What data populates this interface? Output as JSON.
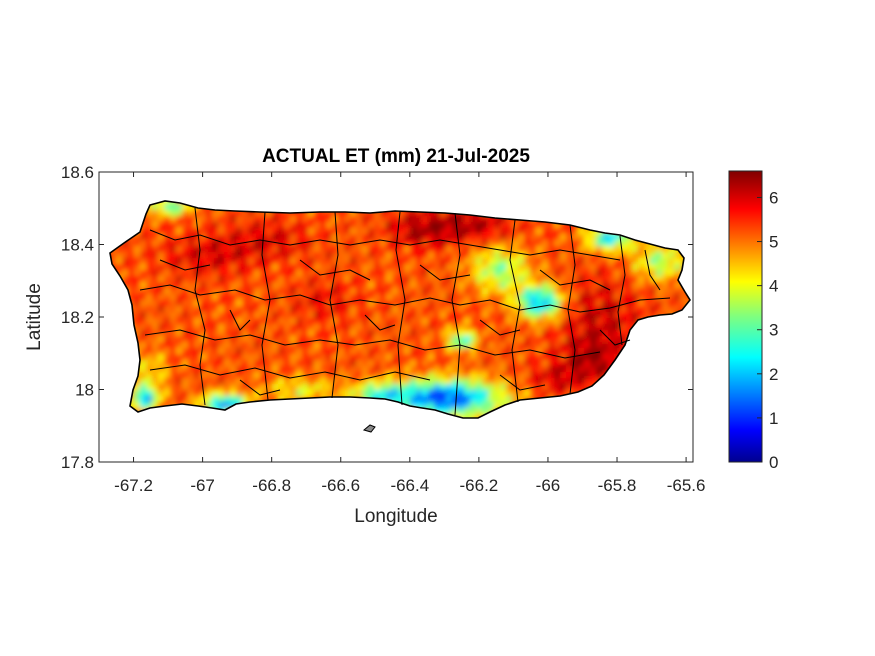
{
  "chart_data": {
    "type": "heatmap",
    "title": "ACTUAL ET (mm) 21-Jul-2025",
    "xlabel": "Longitude",
    "ylabel": "Latitude",
    "xlim": [
      -67.3,
      -65.58
    ],
    "ylim": [
      17.8,
      18.6
    ],
    "x_ticks": [
      -67.2,
      -67,
      -66.8,
      -66.6,
      -66.4,
      -66.2,
      -66,
      -65.8,
      -65.6
    ],
    "x_tick_labels": [
      "-67.2",
      "-67",
      "-66.8",
      "-66.6",
      "-66.4",
      "-66.2",
      "-66",
      "-65.8",
      "-65.6"
    ],
    "y_ticks": [
      17.8,
      18,
      18.2,
      18.4,
      18.6
    ],
    "y_tick_labels": [
      "17.8",
      "18",
      "18.2",
      "18.4",
      "18.6"
    ],
    "colorbar": {
      "colormap": "jet",
      "range": [
        0,
        6.6
      ],
      "ticks": [
        0,
        1,
        2,
        3,
        4,
        5,
        6
      ],
      "tick_labels": [
        "0",
        "1",
        "2",
        "3",
        "4",
        "5",
        "6"
      ]
    },
    "grid": false,
    "notes_regions": [
      {
        "region": "northwest and west-central",
        "value_range": [
          5,
          6.5
        ]
      },
      {
        "region": "north coast",
        "value_range": [
          5.5,
          6.5
        ]
      },
      {
        "region": "east and southeast",
        "value_range": [
          5,
          6.5
        ]
      },
      {
        "region": "south-central coast",
        "value_range": [
          0,
          2
        ]
      },
      {
        "region": "east-central interior",
        "value_range": [
          0.5,
          2
        ]
      },
      {
        "region": "southwest coast",
        "value_range": [
          0.5,
          2.5
        ]
      },
      {
        "region": "northeast coast",
        "value_range": [
          1.5,
          3
        ]
      }
    ]
  }
}
